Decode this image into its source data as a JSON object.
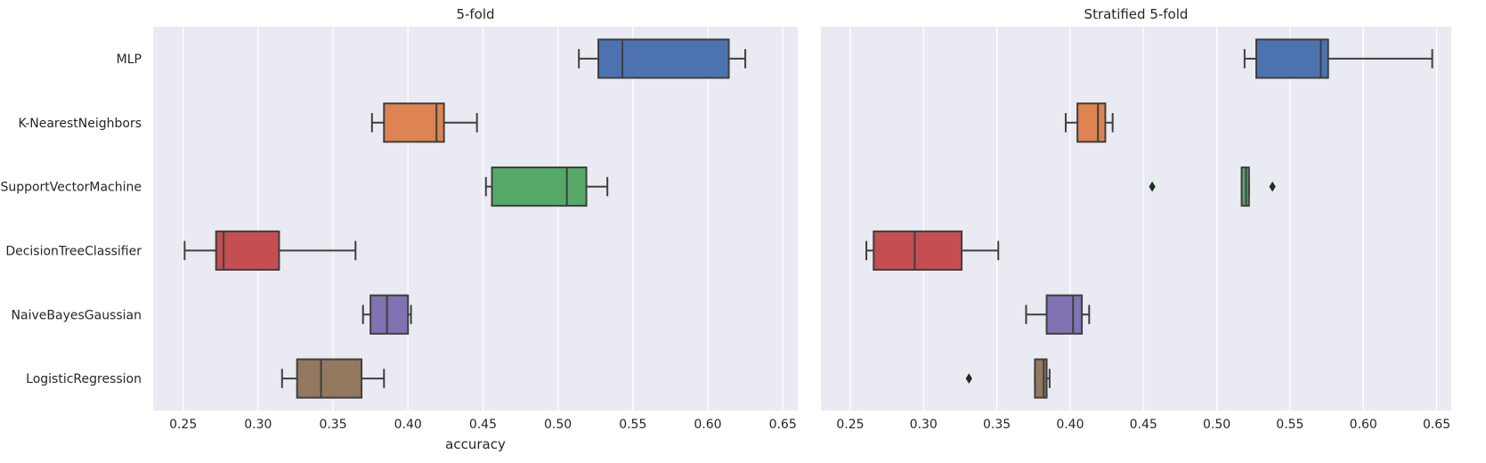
{
  "chart_data": [
    {
      "type": "box",
      "title": "5-fold",
      "xlabel": "accuracy",
      "ylabel": "",
      "xlim": [
        0.23,
        0.66
      ],
      "xticks": [
        0.25,
        0.3,
        0.35,
        0.4,
        0.45,
        0.5,
        0.55,
        0.6,
        0.65
      ],
      "xtick_labels": [
        "0.25",
        "0.30",
        "0.35",
        "0.40",
        "0.45",
        "0.50",
        "0.55",
        "0.60",
        "0.65"
      ],
      "grid": true,
      "categories": [
        "MLP",
        "K-NearestNeighbors",
        "SupportVectorMachine",
        "DecisionTreeClassifier",
        "NaiveBayesGaussian",
        "LogisticRegression"
      ],
      "boxes": [
        {
          "whisker_low": 0.514,
          "q1": 0.527,
          "median": 0.543,
          "q3": 0.614,
          "whisker_high": 0.625,
          "outliers": []
        },
        {
          "whisker_low": 0.376,
          "q1": 0.384,
          "median": 0.419,
          "q3": 0.424,
          "whisker_high": 0.446,
          "outliers": []
        },
        {
          "whisker_low": 0.452,
          "q1": 0.456,
          "median": 0.506,
          "q3": 0.519,
          "whisker_high": 0.533,
          "outliers": []
        },
        {
          "whisker_low": 0.251,
          "q1": 0.272,
          "median": 0.277,
          "q3": 0.314,
          "whisker_high": 0.365,
          "outliers": []
        },
        {
          "whisker_low": 0.37,
          "q1": 0.375,
          "median": 0.386,
          "q3": 0.4,
          "whisker_high": 0.402,
          "outliers": []
        },
        {
          "whisker_low": 0.316,
          "q1": 0.326,
          "median": 0.342,
          "q3": 0.369,
          "whisker_high": 0.384,
          "outliers": []
        }
      ]
    },
    {
      "type": "box",
      "title": "Stratified 5-fold",
      "xlabel": "",
      "ylabel": "",
      "xlim": [
        0.23,
        0.66
      ],
      "xticks": [
        0.25,
        0.3,
        0.35,
        0.4,
        0.45,
        0.5,
        0.55,
        0.6,
        0.65
      ],
      "xtick_labels": [
        "0.25",
        "0.30",
        "0.35",
        "0.40",
        "0.45",
        "0.50",
        "0.55",
        "0.60",
        "0.65"
      ],
      "grid": true,
      "categories": [
        "MLP",
        "K-NearestNeighbors",
        "SupportVectorMachine",
        "DecisionTreeClassifier",
        "NaiveBayesGaussian",
        "LogisticRegression"
      ],
      "boxes": [
        {
          "whisker_low": 0.519,
          "q1": 0.527,
          "median": 0.571,
          "q3": 0.576,
          "whisker_high": 0.647,
          "outliers": []
        },
        {
          "whisker_low": 0.397,
          "q1": 0.405,
          "median": 0.419,
          "q3": 0.424,
          "whisker_high": 0.429,
          "outliers": []
        },
        {
          "whisker_low": 0.517,
          "q1": 0.517,
          "median": 0.52,
          "q3": 0.522,
          "whisker_high": 0.522,
          "outliers": [
            0.456,
            0.538
          ]
        },
        {
          "whisker_low": 0.261,
          "q1": 0.266,
          "median": 0.294,
          "q3": 0.326,
          "whisker_high": 0.351,
          "outliers": []
        },
        {
          "whisker_low": 0.37,
          "q1": 0.384,
          "median": 0.402,
          "q3": 0.408,
          "whisker_high": 0.413,
          "outliers": []
        },
        {
          "whisker_low": 0.376,
          "q1": 0.376,
          "median": 0.382,
          "q3": 0.384,
          "whisker_high": 0.386,
          "outliers": [
            0.331
          ]
        }
      ]
    }
  ],
  "colors": {
    "background": "#eaeaf2",
    "grid": "#ffffff",
    "line": "#3f3f3f",
    "text": "#262626",
    "palette": [
      "#4c72b0",
      "#dd8452",
      "#55a868",
      "#c44e52",
      "#8172b3",
      "#937860"
    ]
  }
}
